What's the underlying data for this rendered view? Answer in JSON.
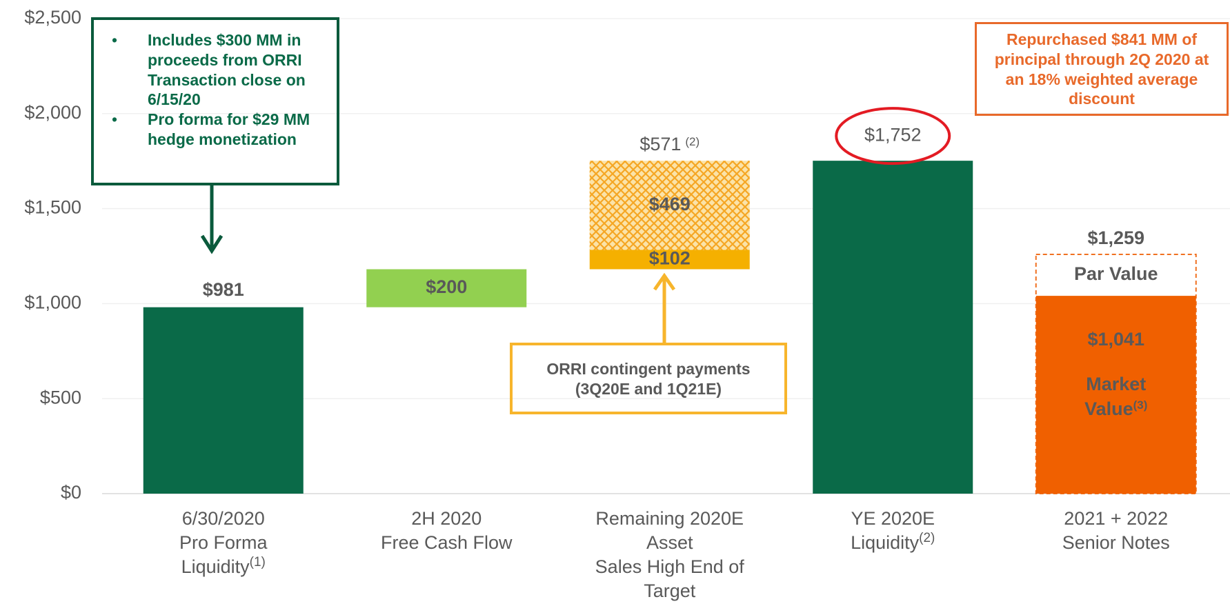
{
  "chart_data": {
    "type": "waterfall",
    "ylim": [
      0,
      2500
    ],
    "yticks": [
      {
        "value": 0,
        "label": "$0"
      },
      {
        "value": 500,
        "label": "$500"
      },
      {
        "value": 1000,
        "label": "$1,000"
      },
      {
        "value": 1500,
        "label": "$1,500"
      },
      {
        "value": 2000,
        "label": "$2,000"
      },
      {
        "value": 2500,
        "label": "$2,500"
      }
    ],
    "grid": true,
    "bars": [
      {
        "category": [
          "6/30/2020",
          "Pro Forma",
          "Liquidity"
        ],
        "note": "(1)",
        "base": "zero",
        "segments": [
          {
            "value": 981,
            "value_label": "$981",
            "color": "#0a6a48",
            "label_pos": "above"
          }
        ]
      },
      {
        "category": [
          "2H 2020",
          "Free Cash Flow"
        ],
        "base": "running",
        "segments": [
          {
            "value": 200,
            "value_label": "$200",
            "color": "#92d050",
            "label_pos": "inside"
          }
        ]
      },
      {
        "category": [
          "Remaining 2020E",
          "Asset",
          "Sales High End of",
          "Target"
        ],
        "base": "running",
        "total": 571,
        "total_label": "$571",
        "total_note": "(2)",
        "segments": [
          {
            "value": 102,
            "value_label": "$102",
            "color": "#f5b000",
            "label_pos": "inside"
          },
          {
            "value": 469,
            "value_label": "$469",
            "color": "#fbe3a8",
            "pattern": true,
            "label_pos": "inside"
          }
        ]
      },
      {
        "category": [
          "YE 2020E",
          "Liquidity"
        ],
        "note": "(2)",
        "base": "zero",
        "segments": [
          {
            "value": 1752,
            "value_label": "$1,752",
            "color": "#0a6a48",
            "label_pos": "above",
            "highlight": true
          }
        ]
      },
      {
        "category": [
          "2021 + 2022",
          "Senior Notes"
        ],
        "base": "zero",
        "outline": {
          "value": 1259,
          "value_label": "$1,259",
          "name": "Par Value",
          "color": "#f07020"
        },
        "segments": [
          {
            "value": 1041,
            "value_label": "$1,041",
            "name": [
              "Market",
              "Value"
            ],
            "note": "(3)",
            "color": "#f06000",
            "label_pos": "inside"
          }
        ]
      }
    ],
    "annotations": {
      "green": [
        "Includes $300 MM in proceeds from ORRI Transaction close on 6/15/20",
        "Pro forma for $29 MM hedge monetization"
      ],
      "orange": "Repurchased $841 MM of principal through 2Q 2020 at an 18% weighted average discount",
      "yellow": "ORRI contingent payments (3Q20E and 1Q21E)"
    }
  }
}
